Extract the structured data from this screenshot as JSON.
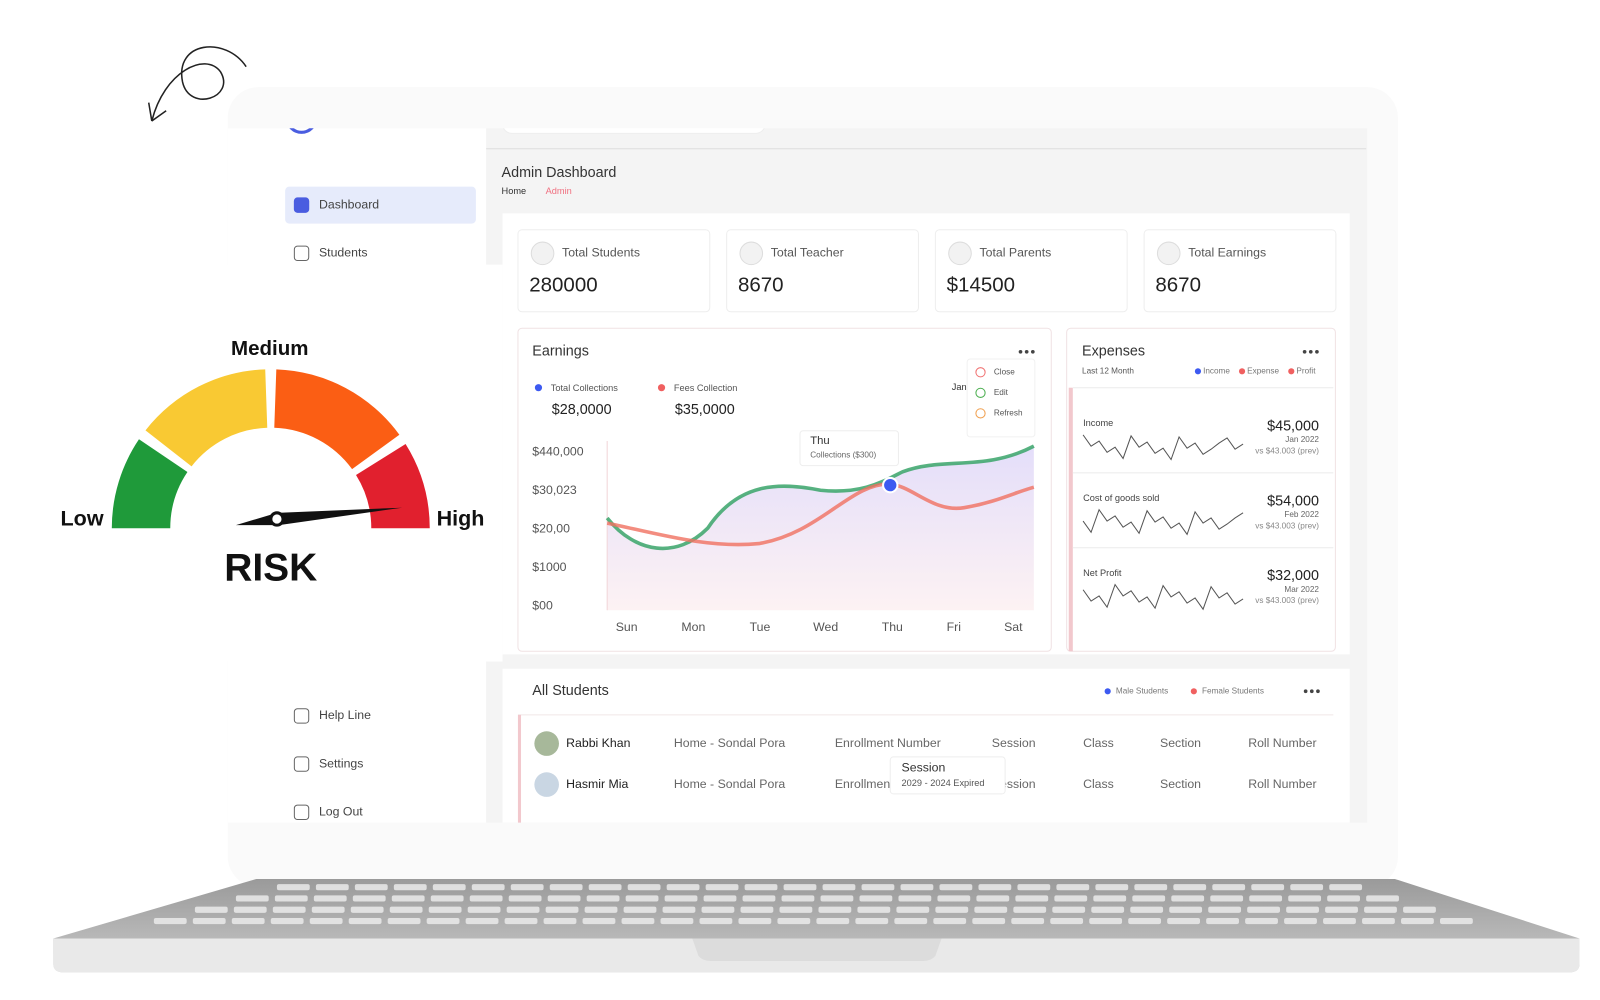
{
  "gauge": {
    "labels": {
      "low": "Low",
      "medium": "Medium",
      "high": "High"
    },
    "title": "RISK"
  },
  "sidebar": {
    "items": [
      "Dashboard",
      "Students",
      "Help Line",
      "Settings",
      "Log Out"
    ]
  },
  "header": {
    "title": "Admin Dashboard",
    "breadcrumb": [
      "Home",
      "Admin"
    ]
  },
  "stats": [
    {
      "label": "Total Students",
      "value": "280000"
    },
    {
      "label": "Total Teacher",
      "value": "8670"
    },
    {
      "label": "Total Parents",
      "value": "$14500"
    },
    {
      "label": "Total Earnings",
      "value": "8670"
    }
  ],
  "earnings": {
    "title": "Earnings",
    "legend": [
      {
        "name": "Total Collections",
        "value": "$28,0000"
      },
      {
        "name": "Fees Collection",
        "value": "$35,0000"
      }
    ],
    "month": "Jan",
    "menu": [
      "Close",
      "Edit",
      "Refresh"
    ],
    "y_labels": [
      "$440,000",
      "$30,023",
      "$20,00",
      "$1000",
      "$00"
    ],
    "days": [
      "Sun",
      "Mon",
      "Tue",
      "Wed",
      "Thu",
      "Fri",
      "Sat"
    ],
    "tooltip": {
      "title": "Thu",
      "text": "Collections ($300)"
    }
  },
  "expenses": {
    "title": "Expenses",
    "filter": "Last 12 Month",
    "legend": [
      "Income",
      "Expense",
      "Profit"
    ],
    "rows": [
      {
        "name": "Income",
        "value": "$45,000",
        "date": "Jan 2022",
        "prev": "vs $43.003 (prev)"
      },
      {
        "name": "Cost of goods sold",
        "value": "$54,000",
        "date": "Feb 2022",
        "prev": "vs $43.003 (prev)"
      },
      {
        "name": "Net Profit",
        "value": "$32,000",
        "date": "Mar 2022",
        "prev": "vs $43.003 (prev)"
      }
    ]
  },
  "students": {
    "title": "All Students",
    "legend": [
      "Male Students",
      "Female Students"
    ],
    "rows": [
      [
        "Rabbi Khan",
        "Home - Sondal Pora",
        "Enrollment Number",
        "Session",
        "Class",
        "Section",
        "Roll Number"
      ],
      [
        "Hasmir Mia",
        "Home - Sondal Pora",
        "Enrollment Number",
        "Session",
        "Class",
        "Section",
        "Roll Number"
      ]
    ],
    "tooltip": {
      "title": "Session",
      "text": "2029 - 2024 Expired"
    }
  }
}
